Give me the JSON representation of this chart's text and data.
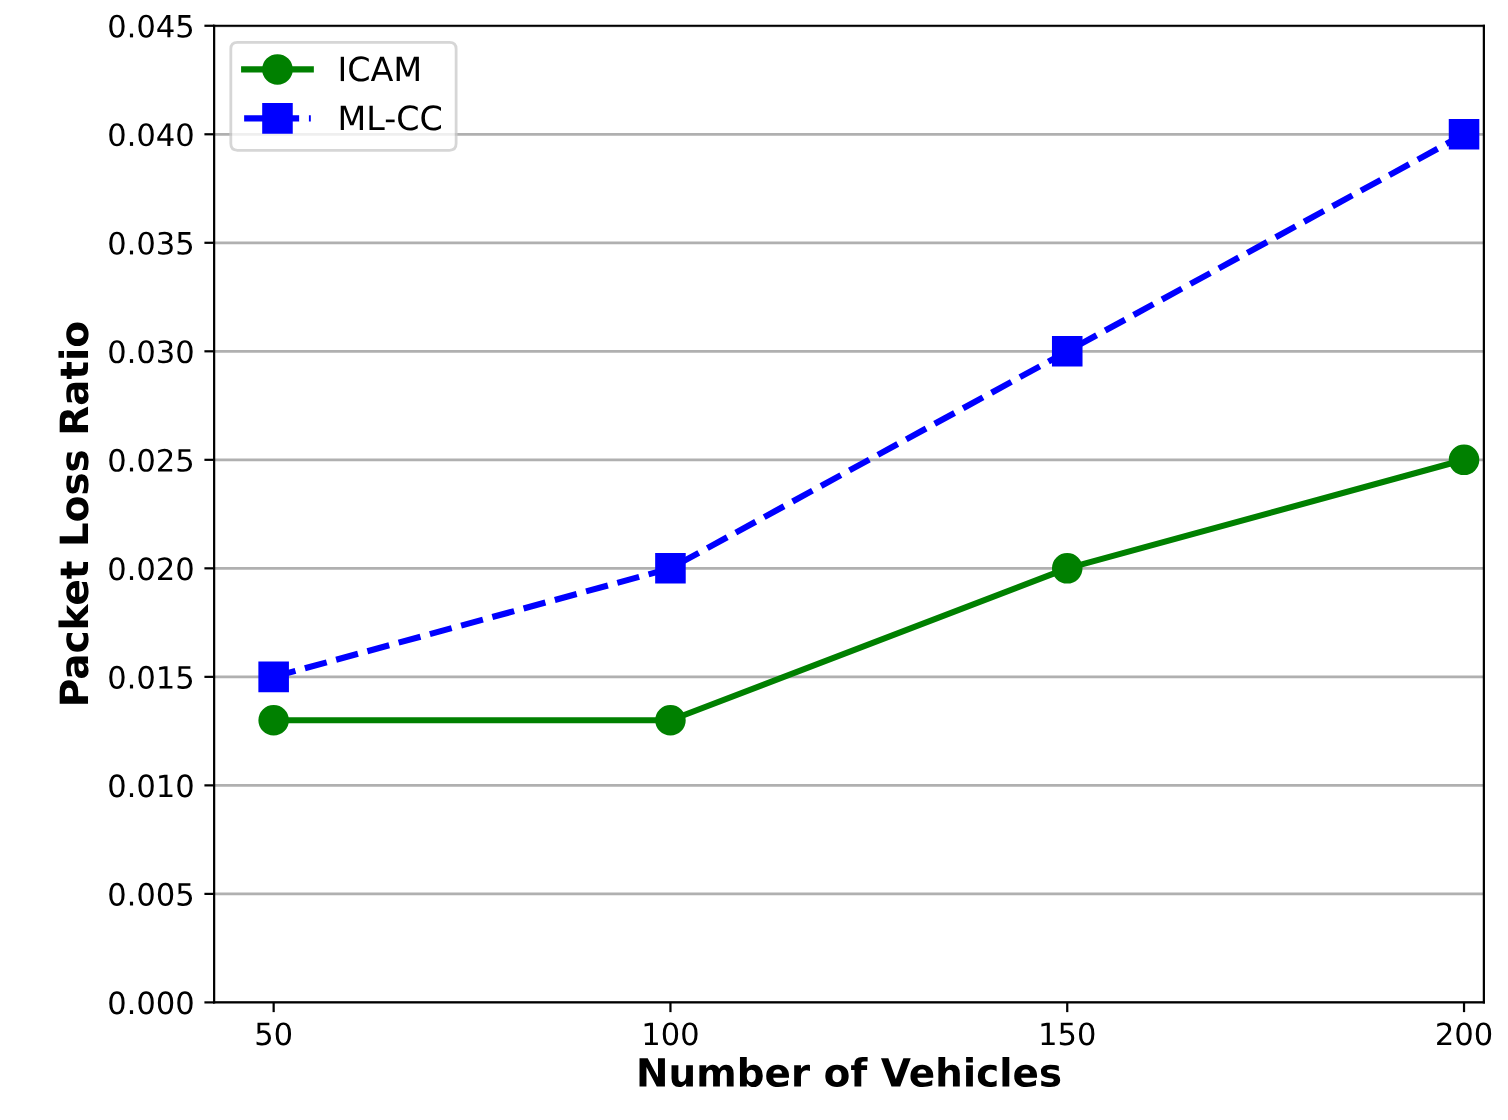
{
  "chart_data": {
    "type": "line",
    "xlabel": "Number of Vehicles",
    "ylabel": "Packet Loss Ratio",
    "x": [
      50,
      100,
      150,
      200
    ],
    "series": [
      {
        "name": "ICAM",
        "color": "#008000",
        "values": [
          0.013,
          0.013,
          0.02,
          0.025
        ],
        "marker": "circle",
        "line_style": "solid"
      },
      {
        "name": "ML-CC",
        "color": "#0000ff",
        "values": [
          0.015,
          0.02,
          0.03,
          0.04
        ],
        "marker": "square",
        "line_style": "dashed"
      }
    ],
    "xlim": [
      42.5,
      202.5
    ],
    "xticks": [
      50,
      100,
      150,
      200
    ],
    "ylim": [
      0,
      0.045
    ],
    "yticks": [
      {
        "value": 0,
        "label": "0.000"
      },
      {
        "value": 0.005,
        "label": "0.005"
      },
      {
        "value": 0.01,
        "label": "0.010"
      },
      {
        "value": 0.015,
        "label": "0.015"
      },
      {
        "value": 0.02,
        "label": "0.020"
      },
      {
        "value": 0.025,
        "label": "0.025"
      },
      {
        "value": 0.03,
        "label": "0.030"
      },
      {
        "value": 0.035,
        "label": "0.035"
      },
      {
        "value": 0.04,
        "label": "0.040"
      },
      {
        "value": 0.045,
        "label": "0.045"
      }
    ],
    "grid": "y",
    "legend": "top left"
  }
}
